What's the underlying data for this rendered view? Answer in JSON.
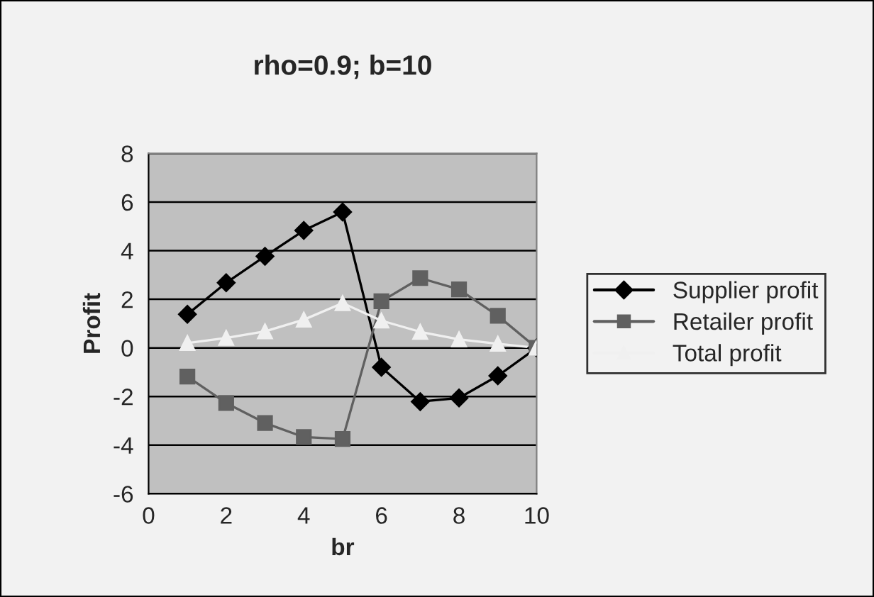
{
  "chart_data": {
    "type": "line",
    "title": "rho=0.9; b=10",
    "xlabel": "br",
    "ylabel": "Profit",
    "x": [
      1,
      2,
      3,
      4,
      5,
      6,
      7,
      8,
      9,
      10
    ],
    "series": [
      {
        "name": "Supplier profit",
        "color": "#000000",
        "marker": "diamond",
        "values": [
          1.38,
          2.68,
          3.77,
          4.83,
          5.59,
          -0.8,
          -2.21,
          -2.06,
          -1.15,
          0
        ]
      },
      {
        "name": "Retailer profit",
        "color": "#606060",
        "marker": "square",
        "values": [
          -1.18,
          -2.27,
          -3.09,
          -3.67,
          -3.75,
          1.92,
          2.87,
          2.41,
          1.32,
          0
        ]
      },
      {
        "name": "Total profit",
        "color": "#f0f0f0",
        "marker": "triangle",
        "values": [
          0.2,
          0.41,
          0.68,
          1.16,
          1.84,
          1.12,
          0.66,
          0.35,
          0.17,
          0
        ]
      }
    ],
    "xlim": [
      0,
      10
    ],
    "xticks": [
      0,
      2,
      4,
      6,
      8,
      10
    ],
    "ylim": [
      -6,
      8
    ],
    "yticks": [
      -6,
      -4,
      -2,
      0,
      2,
      4,
      6,
      8
    ],
    "grid": "y",
    "legend": "right",
    "line_style": "solid"
  }
}
